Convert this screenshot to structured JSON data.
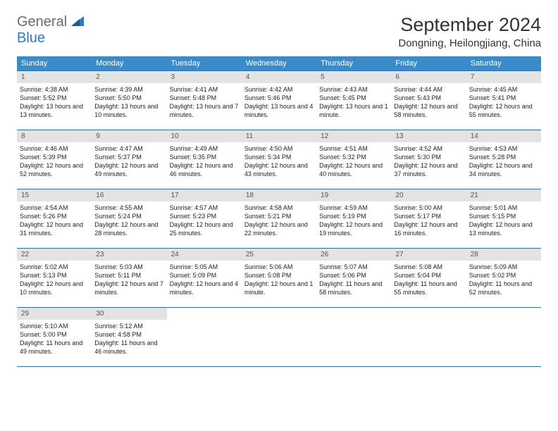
{
  "logo": {
    "line1": "General",
    "line2": "Blue"
  },
  "title": "September 2024",
  "location": "Dongning, Heilongjiang, China",
  "colors": {
    "header_bg": "#3b8bc8",
    "header_text": "#ffffff",
    "daynum_bg": "#e3e3e3",
    "daynum_text": "#555555",
    "rule": "#2f6fa5",
    "logo_gray": "#6a6a6a",
    "logo_blue": "#2f7ac0",
    "body_text": "#222222"
  },
  "typography": {
    "title_fontsize": 27,
    "location_fontsize": 15,
    "dow_fontsize": 11,
    "daynum_fontsize": 10,
    "body_fontsize": 9
  },
  "days_of_week": [
    "Sunday",
    "Monday",
    "Tuesday",
    "Wednesday",
    "Thursday",
    "Friday",
    "Saturday"
  ],
  "weeks": [
    [
      {
        "n": "1",
        "sunrise": "4:38 AM",
        "sunset": "5:52 PM",
        "daylight": "13 hours and 13 minutes."
      },
      {
        "n": "2",
        "sunrise": "4:39 AM",
        "sunset": "5:50 PM",
        "daylight": "13 hours and 10 minutes."
      },
      {
        "n": "3",
        "sunrise": "4:41 AM",
        "sunset": "5:48 PM",
        "daylight": "13 hours and 7 minutes."
      },
      {
        "n": "4",
        "sunrise": "4:42 AM",
        "sunset": "5:46 PM",
        "daylight": "13 hours and 4 minutes."
      },
      {
        "n": "5",
        "sunrise": "4:43 AM",
        "sunset": "5:45 PM",
        "daylight": "13 hours and 1 minute."
      },
      {
        "n": "6",
        "sunrise": "4:44 AM",
        "sunset": "5:43 PM",
        "daylight": "12 hours and 58 minutes."
      },
      {
        "n": "7",
        "sunrise": "4:45 AM",
        "sunset": "5:41 PM",
        "daylight": "12 hours and 55 minutes."
      }
    ],
    [
      {
        "n": "8",
        "sunrise": "4:46 AM",
        "sunset": "5:39 PM",
        "daylight": "12 hours and 52 minutes."
      },
      {
        "n": "9",
        "sunrise": "4:47 AM",
        "sunset": "5:37 PM",
        "daylight": "12 hours and 49 minutes."
      },
      {
        "n": "10",
        "sunrise": "4:49 AM",
        "sunset": "5:35 PM",
        "daylight": "12 hours and 46 minutes."
      },
      {
        "n": "11",
        "sunrise": "4:50 AM",
        "sunset": "5:34 PM",
        "daylight": "12 hours and 43 minutes."
      },
      {
        "n": "12",
        "sunrise": "4:51 AM",
        "sunset": "5:32 PM",
        "daylight": "12 hours and 40 minutes."
      },
      {
        "n": "13",
        "sunrise": "4:52 AM",
        "sunset": "5:30 PM",
        "daylight": "12 hours and 37 minutes."
      },
      {
        "n": "14",
        "sunrise": "4:53 AM",
        "sunset": "5:28 PM",
        "daylight": "12 hours and 34 minutes."
      }
    ],
    [
      {
        "n": "15",
        "sunrise": "4:54 AM",
        "sunset": "5:26 PM",
        "daylight": "12 hours and 31 minutes."
      },
      {
        "n": "16",
        "sunrise": "4:55 AM",
        "sunset": "5:24 PM",
        "daylight": "12 hours and 28 minutes."
      },
      {
        "n": "17",
        "sunrise": "4:57 AM",
        "sunset": "5:23 PM",
        "daylight": "12 hours and 25 minutes."
      },
      {
        "n": "18",
        "sunrise": "4:58 AM",
        "sunset": "5:21 PM",
        "daylight": "12 hours and 22 minutes."
      },
      {
        "n": "19",
        "sunrise": "4:59 AM",
        "sunset": "5:19 PM",
        "daylight": "12 hours and 19 minutes."
      },
      {
        "n": "20",
        "sunrise": "5:00 AM",
        "sunset": "5:17 PM",
        "daylight": "12 hours and 16 minutes."
      },
      {
        "n": "21",
        "sunrise": "5:01 AM",
        "sunset": "5:15 PM",
        "daylight": "12 hours and 13 minutes."
      }
    ],
    [
      {
        "n": "22",
        "sunrise": "5:02 AM",
        "sunset": "5:13 PM",
        "daylight": "12 hours and 10 minutes."
      },
      {
        "n": "23",
        "sunrise": "5:03 AM",
        "sunset": "5:11 PM",
        "daylight": "12 hours and 7 minutes."
      },
      {
        "n": "24",
        "sunrise": "5:05 AM",
        "sunset": "5:09 PM",
        "daylight": "12 hours and 4 minutes."
      },
      {
        "n": "25",
        "sunrise": "5:06 AM",
        "sunset": "5:08 PM",
        "daylight": "12 hours and 1 minute."
      },
      {
        "n": "26",
        "sunrise": "5:07 AM",
        "sunset": "5:06 PM",
        "daylight": "11 hours and 58 minutes."
      },
      {
        "n": "27",
        "sunrise": "5:08 AM",
        "sunset": "5:04 PM",
        "daylight": "11 hours and 55 minutes."
      },
      {
        "n": "28",
        "sunrise": "5:09 AM",
        "sunset": "5:02 PM",
        "daylight": "11 hours and 52 minutes."
      }
    ],
    [
      {
        "n": "29",
        "sunrise": "5:10 AM",
        "sunset": "5:00 PM",
        "daylight": "11 hours and 49 minutes."
      },
      {
        "n": "30",
        "sunrise": "5:12 AM",
        "sunset": "4:58 PM",
        "daylight": "11 hours and 46 minutes."
      },
      null,
      null,
      null,
      null,
      null
    ]
  ],
  "labels": {
    "sunrise_prefix": "Sunrise: ",
    "sunset_prefix": "Sunset: ",
    "daylight_prefix": "Daylight: "
  }
}
